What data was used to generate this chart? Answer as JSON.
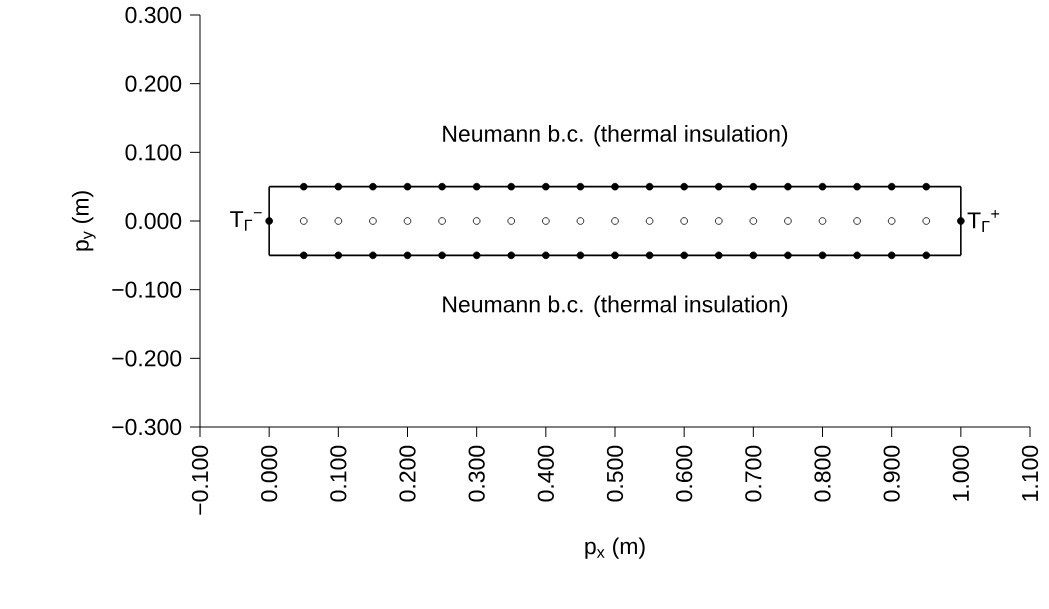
{
  "chart_data": {
    "type": "scatter",
    "xlabel": "p$_{x}$ (m)",
    "ylabel": "p$_{y}$ (m)",
    "xlim": [
      -0.1,
      1.1
    ],
    "ylim": [
      -0.3,
      0.3
    ],
    "xticks": [
      {
        "value": -0.1,
        "label": "−0.100"
      },
      {
        "value": 0,
        "label": "0.000"
      },
      {
        "value": 0.1,
        "label": "0.100"
      },
      {
        "value": 0.2,
        "label": "0.200"
      },
      {
        "value": 0.3,
        "label": "0.300"
      },
      {
        "value": 0.4,
        "label": "0.400"
      },
      {
        "value": 0.5,
        "label": "0.500"
      },
      {
        "value": 0.6,
        "label": "0.600"
      },
      {
        "value": 0.7,
        "label": "0.700"
      },
      {
        "value": 0.8,
        "label": "0.800"
      },
      {
        "value": 0.9,
        "label": "0.900"
      },
      {
        "value": 1.0,
        "label": "1.000"
      },
      {
        "value": 1.1,
        "label": "1.100"
      }
    ],
    "yticks": [
      {
        "value": -0.3,
        "label": "−0.300"
      },
      {
        "value": -0.2,
        "label": "−0.200"
      },
      {
        "value": -0.1,
        "label": "−0.100"
      },
      {
        "value": 0,
        "label": "0.000"
      },
      {
        "value": 0.1,
        "label": "0.100"
      },
      {
        "value": 0.2,
        "label": "0.200"
      },
      {
        "value": 0.3,
        "label": "0.300"
      }
    ],
    "grid": false,
    "series": [
      {
        "type": "line",
        "color": "#000000",
        "marker": "none",
        "x": [
          0,
          1
        ],
        "values": [
          -0.05,
          -0.05
        ]
      },
      {
        "type": "line",
        "color": "#000000",
        "marker": "none",
        "x": [
          1,
          1
        ],
        "values": [
          -0.05,
          0.05
        ]
      },
      {
        "type": "line",
        "color": "#000000",
        "marker": "none",
        "x": [
          0,
          1
        ],
        "values": [
          0.05,
          0.05
        ]
      },
      {
        "type": "line",
        "color": "#000000",
        "marker": "none",
        "x": [
          0,
          0
        ],
        "values": [
          -0.05,
          0.05
        ]
      },
      {
        "color": "#000000",
        "marker": "circle",
        "x": [
          0.05,
          0.1,
          0.15,
          0.2,
          0.25,
          0.3,
          0.35,
          0.4,
          0.45,
          0.5,
          0.55,
          0.6,
          0.65,
          0.7,
          0.75,
          0.8,
          0.85,
          0.9,
          0.95
        ],
        "values": [
          0.05,
          0.05,
          0.05,
          0.05,
          0.05,
          0.05,
          0.05,
          0.05,
          0.05,
          0.05,
          0.05,
          0.05,
          0.05,
          0.05,
          0.05,
          0.05,
          0.05,
          0.05,
          0.05
        ]
      },
      {
        "color": "#000000",
        "marker": "circle",
        "x": [
          0.05,
          0.1,
          0.15,
          0.2,
          0.25,
          0.3,
          0.35,
          0.4,
          0.45,
          0.5,
          0.55,
          0.6,
          0.65,
          0.7,
          0.75,
          0.8,
          0.85,
          0.9,
          0.95
        ],
        "values": [
          -0.05,
          -0.05,
          -0.05,
          -0.05,
          -0.05,
          -0.05,
          -0.05,
          -0.05,
          -0.05,
          -0.05,
          -0.05,
          -0.05,
          -0.05,
          -0.05,
          -0.05,
          -0.05,
          -0.05,
          -0.05,
          -0.05
        ]
      },
      {
        "color": "#000000",
        "marker": "circle",
        "x": [
          0,
          1
        ],
        "values": [
          0,
          0
        ]
      },
      {
        "color": "#ffffff",
        "marker": "circle",
        "x": [
          0.05,
          0.1,
          0.15,
          0.2,
          0.25,
          0.3,
          0.35,
          0.4,
          0.45,
          0.5,
          0.55,
          0.6,
          0.65,
          0.7,
          0.75,
          0.8,
          0.85,
          0.9,
          0.95
        ],
        "values": [
          0,
          0,
          0,
          0,
          0,
          0,
          0,
          0,
          0,
          0,
          0,
          0,
          0,
          0,
          0,
          0,
          0,
          0,
          0
        ]
      }
    ],
    "annotations": [
      "Neumann b.c. (thermal insulation)",
      "Neumann b.c. (thermal insulation)",
      "T$_{Γ}$$^{−}$",
      "T$_{Γ}$$^{+}$"
    ]
  }
}
